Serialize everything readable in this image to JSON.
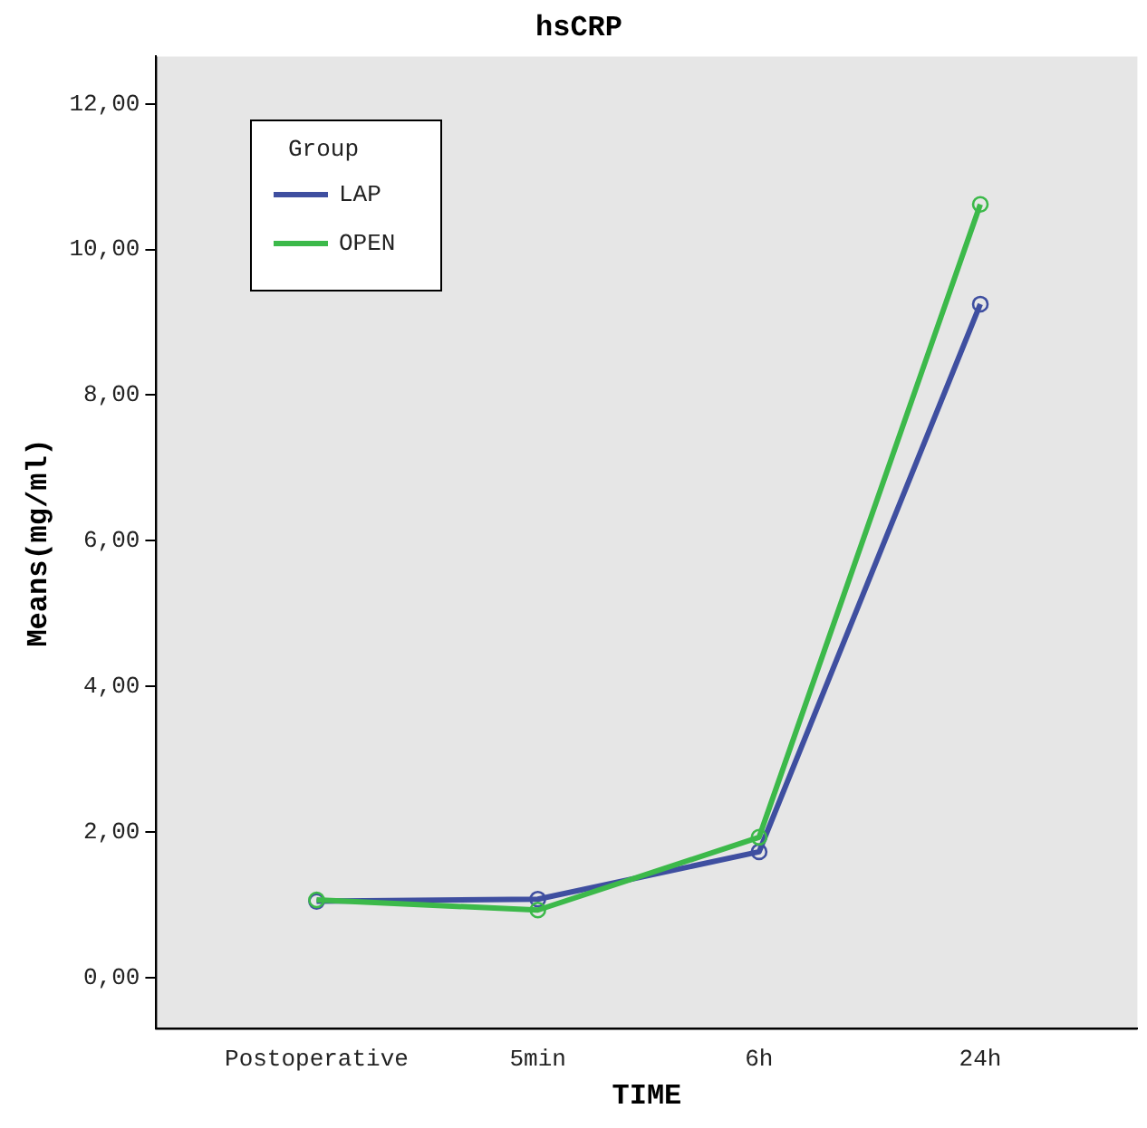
{
  "chart_data": {
    "type": "line",
    "title": "hsCRP",
    "xlabel": "TIME",
    "ylabel": "Means(mg/ml)",
    "legend_title": "Group",
    "legend": "top left",
    "marker": "circle",
    "line_style": "solid",
    "grid": false,
    "categories": [
      "Postoperative",
      "5min",
      "6h",
      "24h"
    ],
    "series": [
      {
        "name": "LAP",
        "color": "#3f4fa0",
        "values": [
          1.05,
          1.08,
          1.73,
          9.25
        ]
      },
      {
        "name": "OPEN",
        "color": "#3cb94a",
        "values": [
          1.07,
          0.93,
          1.93,
          10.62
        ]
      }
    ],
    "ylim": [
      -0.7,
      12.65
    ],
    "yticks": [
      {
        "value": 0,
        "label": "0,00"
      },
      {
        "value": 2,
        "label": "2,00"
      },
      {
        "value": 4,
        "label": "4,00"
      },
      {
        "value": 6,
        "label": "6,00"
      },
      {
        "value": 8,
        "label": "8,00"
      },
      {
        "value": 10,
        "label": "10,00"
      },
      {
        "value": 12,
        "label": "12,00"
      }
    ]
  }
}
